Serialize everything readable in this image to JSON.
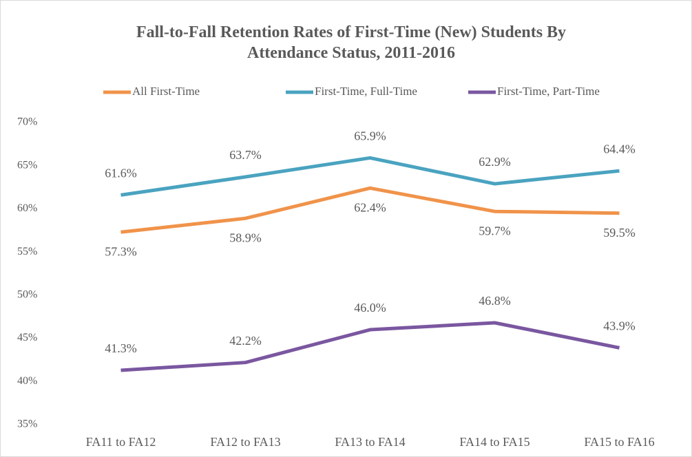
{
  "chart_data": {
    "type": "line",
    "title": "Fall-to-Fall Retention Rates of First-Time (New) Students By Attendance Status, 2011-2016",
    "categories": [
      "FA11 to FA12",
      "FA12 to FA13",
      "FA13 to FA14",
      "FA14 to FA15",
      "FA15 to FA16"
    ],
    "series": [
      {
        "name": "All First-Time",
        "color": "#f0934a",
        "label_position": "below",
        "values": [
          57.3,
          58.9,
          62.4,
          59.7,
          59.5
        ],
        "value_labels": [
          "57.3%",
          "58.9%",
          "62.4%",
          "59.7%",
          "59.5%"
        ]
      },
      {
        "name": "First-Time, Full-Time",
        "color": "#4aa3c0",
        "label_position": "above",
        "values": [
          61.6,
          63.7,
          65.9,
          62.9,
          64.4
        ],
        "value_labels": [
          "61.6%",
          "63.7%",
          "65.9%",
          "62.9%",
          "64.4%"
        ]
      },
      {
        "name": "First-Time, Part-Time",
        "color": "#7a57a0",
        "label_position": "above",
        "values": [
          41.3,
          42.2,
          46.0,
          46.8,
          43.9
        ],
        "value_labels": [
          "41.3%",
          "42.2%",
          "46.0%",
          "46.8%",
          "43.9%"
        ]
      }
    ],
    "ylim": [
      35,
      70
    ],
    "yticks": [
      {
        "value": 35,
        "label": "35%"
      },
      {
        "value": 40,
        "label": "40%"
      },
      {
        "value": 45,
        "label": "45%"
      },
      {
        "value": 50,
        "label": "50%"
      },
      {
        "value": 55,
        "label": "55%"
      },
      {
        "value": 60,
        "label": "60%"
      },
      {
        "value": 65,
        "label": "65%"
      },
      {
        "value": 70,
        "label": "70%"
      }
    ],
    "grid": false,
    "legend": "top"
  }
}
